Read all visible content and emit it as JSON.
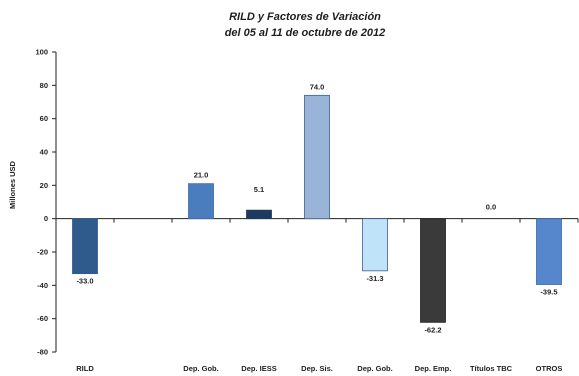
{
  "chart_data": {
    "type": "bar",
    "title": "RILD y Factores de Variación",
    "subtitle": "del 05 al 11 de octubre de 2012",
    "ylabel": "Millones USD",
    "xlabel": "",
    "ylim": [
      -80,
      100
    ],
    "yticks": [
      100,
      80,
      60,
      40,
      20,
      0,
      -20,
      -40,
      -60,
      -80
    ],
    "grid": false,
    "legend": "none",
    "categories": [
      "RILD",
      "",
      "Dep. Gob.",
      "Dep. IESS",
      "Dep. Sis.",
      "Dep. Gob.",
      "Dep. Emp.",
      "Títulos TBC",
      "OTROS"
    ],
    "values": [
      -33.0,
      null,
      21.0,
      5.1,
      74.0,
      -31.3,
      -62.2,
      0.0,
      -39.5
    ],
    "data_labels": [
      "-33.0",
      "",
      "21.0",
      "5.1",
      "74.0",
      "-31.3",
      "-62.2",
      "0.0",
      "-39.5"
    ],
    "colors": [
      "#2f5a8c",
      null,
      "#4a7dbd",
      "#1c3b5e",
      "#9ab4d8",
      "#bfe3f9",
      "#3a3a3a",
      "#7f7f7f",
      "#5686cc"
    ],
    "edge_colors": [
      "#2f5a8c",
      null,
      "#3b6aa5",
      "#1c3b5e",
      "#3d5f8f",
      "#3d5f8f",
      "#222222",
      "#555555",
      "#3b6aa5"
    ]
  }
}
